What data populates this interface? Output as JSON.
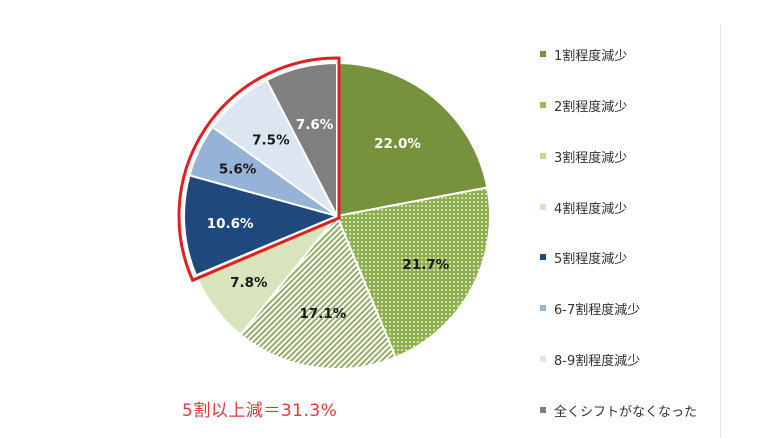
{
  "chart_data": {
    "type": "pie",
    "title": "",
    "start_angle_deg": 0,
    "direction": "clockwise",
    "categories": [
      "1割程度減少",
      "2割程度減少",
      "3割程度減少",
      "4割程度減少",
      "5割程度減少",
      "6-7割程度減少",
      "8-9割程度減少",
      "全くシフトがなくなった"
    ],
    "values": [
      22.0,
      21.7,
      17.1,
      7.8,
      10.6,
      5.6,
      7.5,
      7.6
    ],
    "value_labels": [
      "22.0%",
      "21.7%",
      "17.1%",
      "7.8%",
      "10.6%",
      "5.6%",
      "7.5%",
      "7.6%"
    ],
    "colors": [
      "#76923c",
      "#9bbb59",
      "#c4d79b",
      "#d8e4bc",
      "#1f497d",
      "#95b3d7",
      "#dce6f1",
      "#7f7f7f"
    ],
    "patterns": [
      "solid",
      "dots",
      "diagonal-lines",
      "solid",
      "solid",
      "solid",
      "solid",
      "solid"
    ],
    "label_colors": [
      "#ffffff",
      "#1a1a1a",
      "#1a1a1a",
      "#1a1a1a",
      "#ffffff",
      "#1a1a1a",
      "#1a1a1a",
      "#ffffff"
    ],
    "legend_position": "right",
    "highlight": {
      "categories": [
        "5割程度減少",
        "6-7割程度減少",
        "8-9割程度減少",
        "全くシフトがなくなった"
      ],
      "outline_color": "#e02020"
    },
    "annotation": "5割以上減＝31.3%"
  },
  "legend": {
    "items": [
      {
        "label": "1割程度減少"
      },
      {
        "label": "2割程度減少"
      },
      {
        "label": "3割程度減少"
      },
      {
        "label": "4割程度減少"
      },
      {
        "label": "5割程度減少"
      },
      {
        "label": "6-7割程度減少"
      },
      {
        "label": "8-9割程度減少"
      },
      {
        "label": "全くシフトがなくなった"
      }
    ]
  },
  "annotation": {
    "text": "5割以上減＝31.3%",
    "color": "#e03a3a"
  }
}
